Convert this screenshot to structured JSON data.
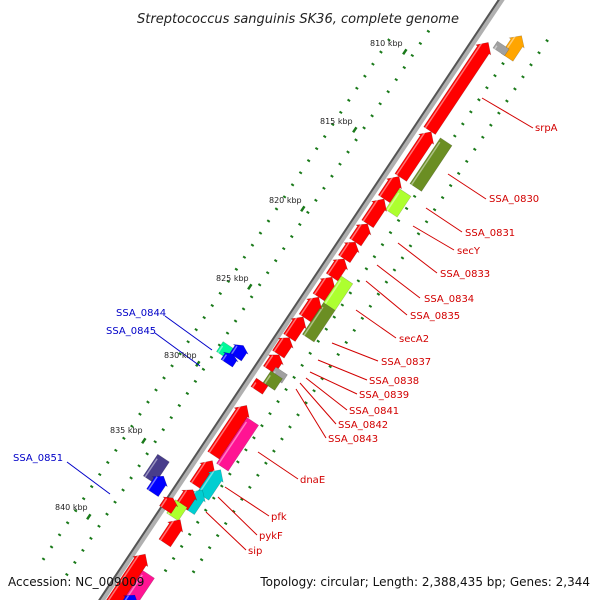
{
  "title": "Streptococcus sanguinis SK36, complete genome",
  "footer": {
    "accession": "Accession: NC_009009",
    "summary": "Topology: circular; Length: 2,388,435 bp; Genes: 2,344"
  },
  "ticks": [
    "810 kbp",
    "815 kbp",
    "820 kbp",
    "825 kbp",
    "830 kbp",
    "835 kbp",
    "840 kbp"
  ],
  "colors": {
    "red": "#ff0000",
    "olive": "#6b8e23",
    "lime": "#adff2f",
    "blue": "#0000ff",
    "navy": "#483d8b",
    "teal": "#00ced1",
    "pink": "#ff1493",
    "mint": "#00fa9a",
    "orange": "#ffa500",
    "gray": "#a0a0a0",
    "tick_green": "#1a7a1a",
    "label_red": "#d20000",
    "label_blue": "#0000c8"
  },
  "gene_labels": [
    {
      "text": "srpA",
      "color": "red"
    },
    {
      "text": "SSA_0830",
      "color": "red"
    },
    {
      "text": "SSA_0831",
      "color": "red"
    },
    {
      "text": "secY",
      "color": "red"
    },
    {
      "text": "SSA_0833",
      "color": "red"
    },
    {
      "text": "SSA_0834",
      "color": "red"
    },
    {
      "text": "SSA_0835",
      "color": "red"
    },
    {
      "text": "secA2",
      "color": "red"
    },
    {
      "text": "SSA_0837",
      "color": "red"
    },
    {
      "text": "SSA_0838",
      "color": "red"
    },
    {
      "text": "SSA_0839",
      "color": "red"
    },
    {
      "text": "SSA_0841",
      "color": "red"
    },
    {
      "text": "SSA_0842",
      "color": "red"
    },
    {
      "text": "SSA_0843",
      "color": "red"
    },
    {
      "text": "dnaE",
      "color": "red"
    },
    {
      "text": "pfk",
      "color": "red"
    },
    {
      "text": "pykF",
      "color": "red"
    },
    {
      "text": "sip",
      "color": "red"
    },
    {
      "text": "SSA_0844",
      "color": "blue"
    },
    {
      "text": "SSA_0845",
      "color": "blue"
    },
    {
      "text": "SSA_0851",
      "color": "blue"
    }
  ]
}
